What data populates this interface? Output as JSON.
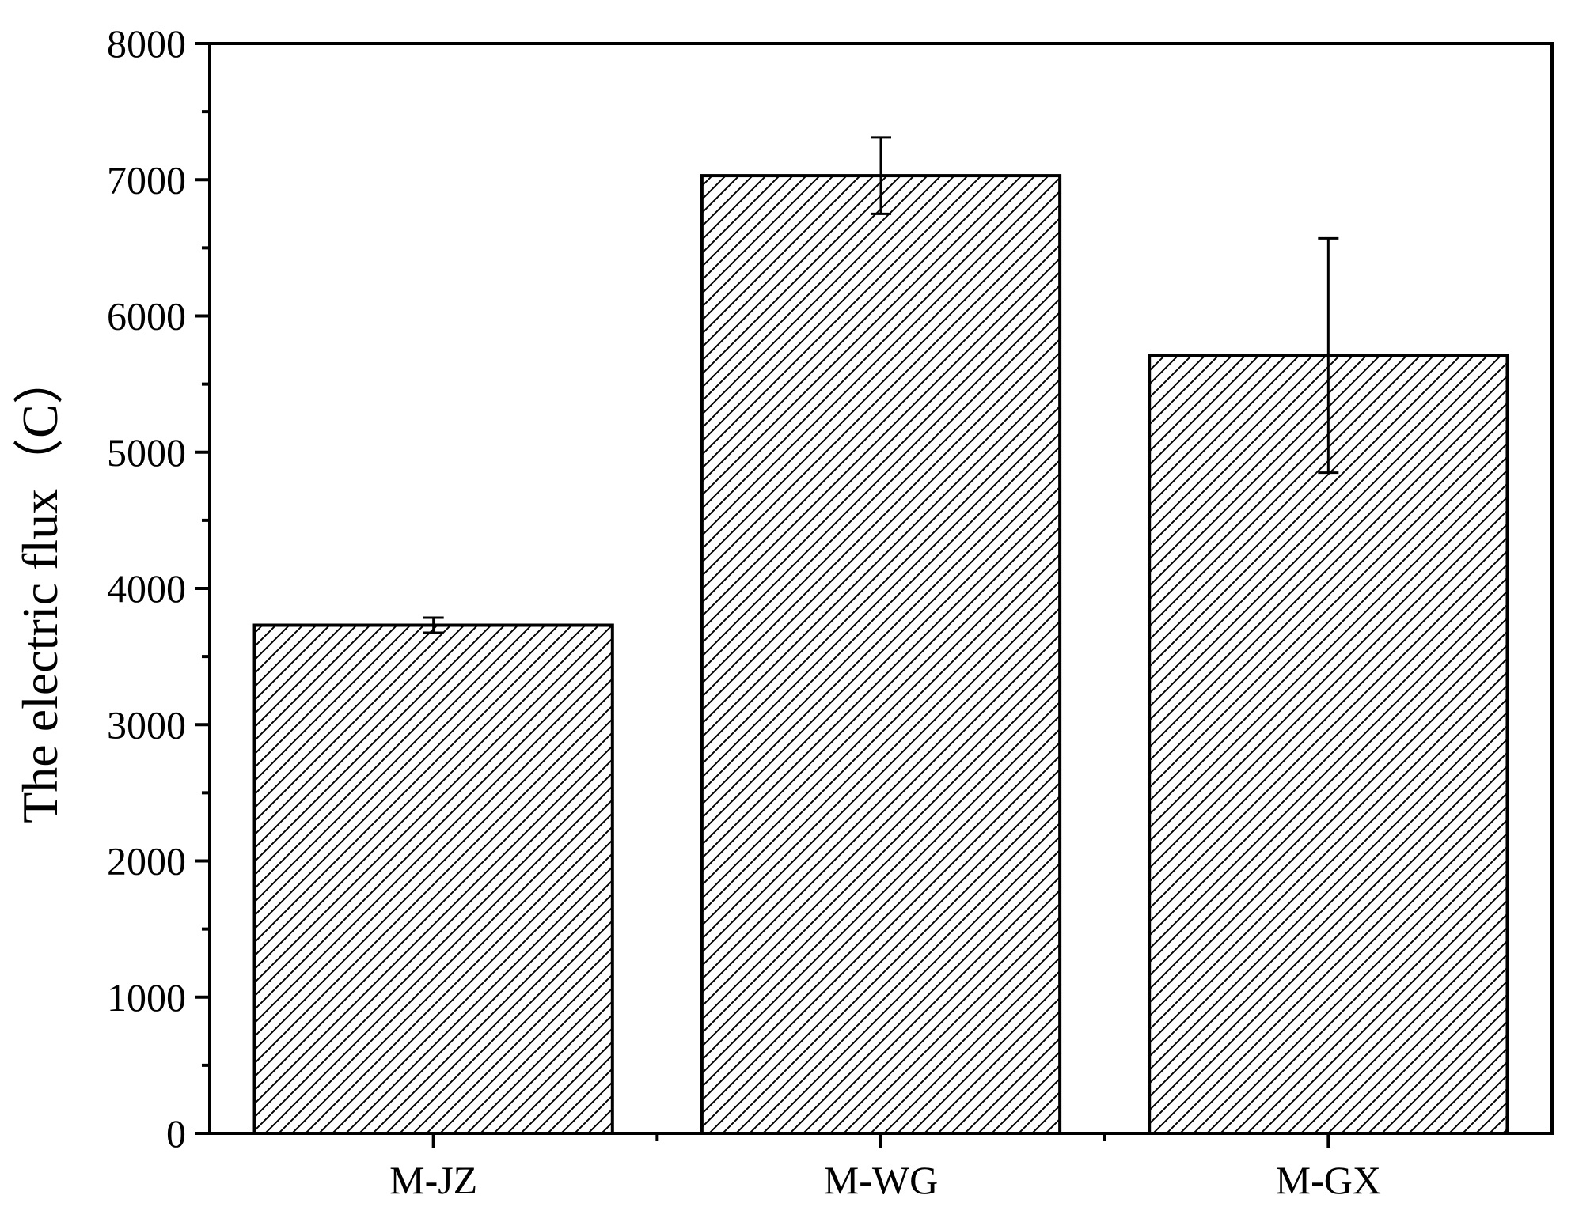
{
  "chart_data": {
    "type": "bar",
    "title": "",
    "xlabel": "",
    "ylabel": "The electric flux（C）",
    "categories": [
      "M-JZ",
      "M-WG",
      "M-GX"
    ],
    "values": [
      3730,
      7030,
      5710
    ],
    "errors": [
      55,
      280,
      860
    ],
    "ylim": [
      0,
      8000
    ],
    "yticks": [
      0,
      1000,
      2000,
      3000,
      4000,
      5000,
      6000,
      7000,
      8000
    ],
    "grid": false,
    "legend": "none",
    "bar_fill": "diagonal-hatch",
    "colors": {
      "bar_stroke": "#000000",
      "hatch": "#000000",
      "background": "#ffffff"
    }
  }
}
